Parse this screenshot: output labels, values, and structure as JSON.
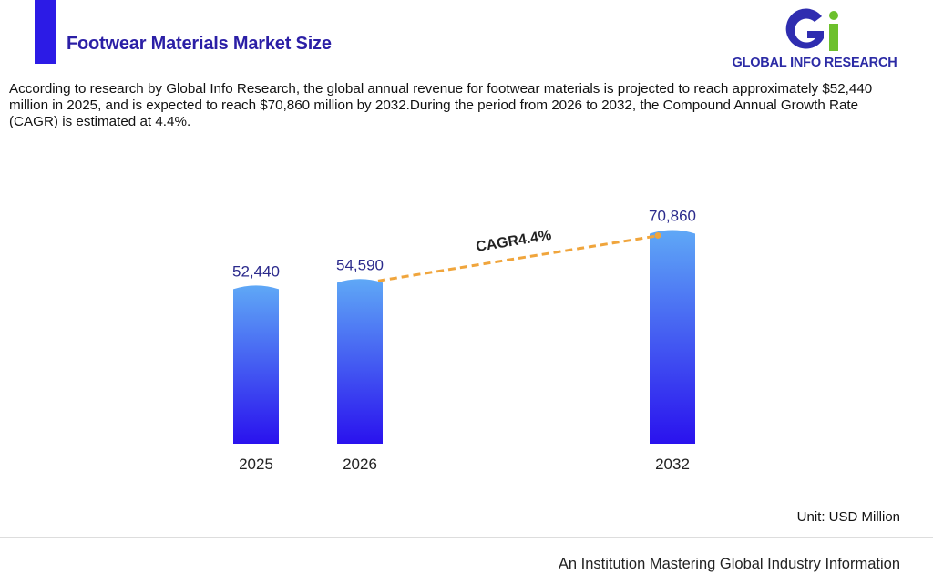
{
  "header": {
    "title": "Footwear Materials Market Size",
    "accent_color": "#2c1be6",
    "title_color": "#2b1fa6"
  },
  "logo": {
    "text": "GLOBAL INFO RESEARCH",
    "text_color": "#2b2aa5",
    "g_color": "#2f2db0",
    "i_color": "#6cc02c"
  },
  "description": "According to research by Global Info Research, the global annual revenue for footwear materials is projected to reach approximately $52,440 million in 2025, and is expected to reach $70,860 million by 2032.During the period from 2026 to 2032, the Compound Annual Growth Rate (CAGR) is estimated at 4.4%.",
  "chart_data": {
    "type": "bar",
    "categories": [
      "2025",
      "2026",
      "2032"
    ],
    "values": [
      52440,
      54590,
      70860
    ],
    "data_labels": [
      "52,440",
      "54,590",
      "70,860"
    ],
    "annotation": {
      "text": "CAGR4.4%",
      "from": "2026",
      "to": "2032",
      "line_color": "#f0a53c"
    },
    "unit": "Unit: USD Million",
    "label_color": "#2b2a8c",
    "bar_gradient": {
      "top": "#5fa8f6",
      "bottom": "#2a12ee"
    },
    "grid": false,
    "legend": "none"
  },
  "footer": {
    "tagline": "An Institution Mastering Global Industry Information"
  }
}
